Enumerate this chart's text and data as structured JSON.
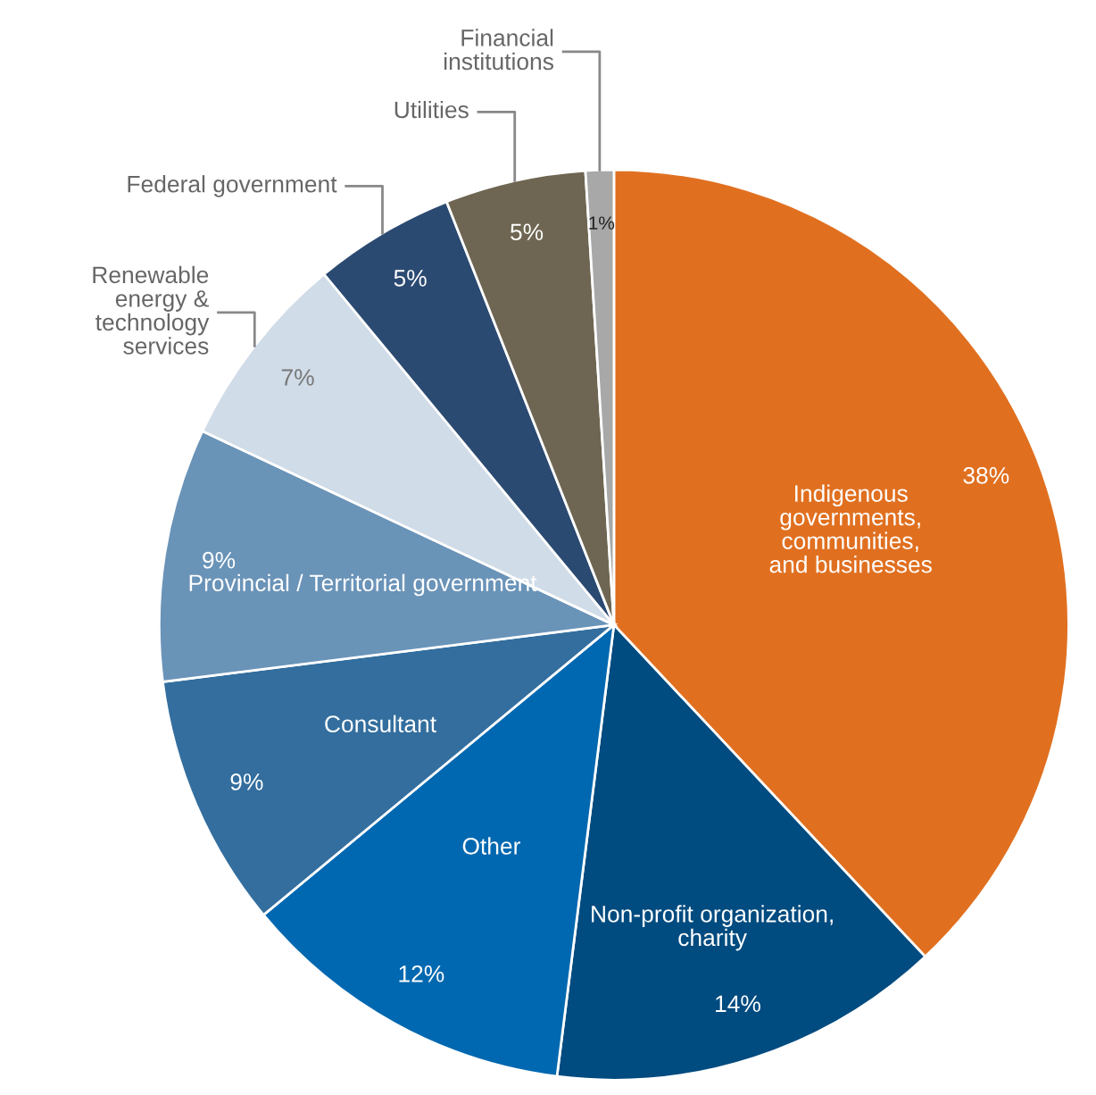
{
  "chart_data": {
    "type": "pie",
    "categories": [
      "Indigenous\ngovernments,\ncommunities,\nand businesses",
      "Non-profit organization,\ncharity",
      "Other",
      "Consultant",
      "Provincial / Territorial government",
      "Renewable\nenergy &\ntechnology\nservices",
      "Federal government",
      "Utilities",
      "Financial\ninstitutions"
    ],
    "values": [
      38,
      14,
      12,
      9,
      9,
      7,
      5,
      5,
      1
    ],
    "colors": [
      "#e07020",
      "#004b7f",
      "#0068b0",
      "#336e9e",
      "#6a93b8",
      "#d0dce8",
      "#2b4a72",
      "#6e6652",
      "#a8a8a8"
    ],
    "value_labels": [
      "38%",
      "14%",
      "12%",
      "9%",
      "9%",
      "7%",
      "5%",
      "5%",
      "1%"
    ],
    "legend": false
  }
}
